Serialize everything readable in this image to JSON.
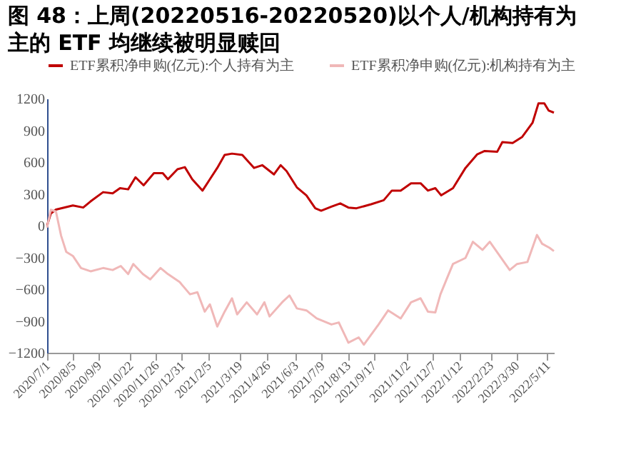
{
  "chart_data": {
    "type": "line",
    "title": "图 48：上周(20220516-20220520)以个人/机构持有为主的 ETF 均继续被明显赎回",
    "xlim": [
      "2020-07-01",
      "2022-05-20"
    ],
    "xticks": [
      {
        "value": "2020-07-01",
        "label": "2020/7/1"
      },
      {
        "value": "2020-08-05",
        "label": "2020/8/5"
      },
      {
        "value": "2020-09-09",
        "label": "2020/9/9"
      },
      {
        "value": "2020-10-22",
        "label": "2020/10/22"
      },
      {
        "value": "2020-11-26",
        "label": "2020/11/26"
      },
      {
        "value": "2020-12-31",
        "label": "2020/12/31"
      },
      {
        "value": "2021-02-05",
        "label": "2021/2/5"
      },
      {
        "value": "2021-03-19",
        "label": "2021/3/19"
      },
      {
        "value": "2021-04-26",
        "label": "2021/4/26"
      },
      {
        "value": "2021-06-03",
        "label": "2021/6/3"
      },
      {
        "value": "2021-07-09",
        "label": "2021/7/9"
      },
      {
        "value": "2021-08-13",
        "label": "2021/8/13"
      },
      {
        "value": "2021-09-17",
        "label": "2021/9/17"
      },
      {
        "value": "2021-11-02",
        "label": "2021/11/2"
      },
      {
        "value": "2021-12-07",
        "label": "2021/12/7"
      },
      {
        "value": "2022-01-12",
        "label": "2022/1/12"
      },
      {
        "value": "2022-02-23",
        "label": "2022/2/23"
      },
      {
        "value": "2022-03-30",
        "label": "2022/3/30"
      },
      {
        "value": "2022-05-11",
        "label": "2022/5/11"
      }
    ],
    "ylim": [
      -1200,
      1200
    ],
    "yticks": [
      -1200,
      -900,
      -600,
      -300,
      0,
      300,
      600,
      900,
      1200
    ],
    "grid": false,
    "legend": "top",
    "line_style": "solid",
    "marker": "none",
    "series": [
      {
        "name": "ETF累积净申购(亿元):个人持有为主",
        "color": "#c00000",
        "x": [
          "2020-07-01",
          "2020-07-06",
          "2020-07-13",
          "2020-08-05",
          "2020-08-19",
          "2020-08-29",
          "2020-09-15",
          "2020-09-28",
          "2020-10-08",
          "2020-10-19",
          "2020-10-29",
          "2020-11-09",
          "2020-11-23",
          "2020-12-05",
          "2020-12-12",
          "2020-12-25",
          "2021-01-04",
          "2021-01-14",
          "2021-01-28",
          "2021-02-07",
          "2021-02-17",
          "2021-02-27",
          "2021-03-09",
          "2021-03-23",
          "2021-04-08",
          "2021-04-19",
          "2021-05-05",
          "2021-05-14",
          "2021-05-22",
          "2021-06-05",
          "2021-06-18",
          "2021-06-30",
          "2021-07-08",
          "2021-07-22",
          "2021-08-03",
          "2021-08-14",
          "2021-08-25",
          "2021-09-14",
          "2021-10-01",
          "2021-10-12",
          "2021-10-24",
          "2021-11-07",
          "2021-11-20",
          "2021-11-30",
          "2021-12-10",
          "2021-12-18",
          "2022-01-03",
          "2022-01-20",
          "2022-02-05",
          "2022-02-15",
          "2022-03-04",
          "2022-03-11",
          "2022-03-25",
          "2022-04-07",
          "2022-04-21",
          "2022-04-29",
          "2022-05-07",
          "2022-05-13",
          "2022-05-20"
        ],
        "values": [
          0,
          114,
          152,
          190,
          171,
          229,
          316,
          305,
          354,
          343,
          457,
          381,
          495,
          495,
          438,
          533,
          552,
          438,
          331,
          438,
          545,
          667,
          680,
          667,
          545,
          571,
          484,
          571,
          516,
          362,
          286,
          164,
          141,
          179,
          210,
          171,
          164,
          202,
          240,
          331,
          331,
          400,
          400,
          331,
          354,
          286,
          354,
          545,
          674,
          705,
          697,
          789,
          781,
          838,
          971,
          1154,
          1154,
          1086,
          1067
        ]
      },
      {
        "name": "ETF累积净申购(亿元):机构持有为主",
        "color": "#f0b8b8",
        "x": [
          "2020-07-01",
          "2020-07-06",
          "2020-07-13",
          "2020-07-20",
          "2020-07-27",
          "2020-08-05",
          "2020-08-16",
          "2020-08-29",
          "2020-09-15",
          "2020-09-28",
          "2020-10-09",
          "2020-10-19",
          "2020-10-26",
          "2020-11-08",
          "2020-11-18",
          "2020-12-02",
          "2020-12-12",
          "2020-12-28",
          "2021-01-11",
          "2021-01-21",
          "2021-01-31",
          "2021-02-07",
          "2021-02-17",
          "2021-02-27",
          "2021-03-09",
          "2021-03-16",
          "2021-03-29",
          "2021-04-12",
          "2021-04-22",
          "2021-04-29",
          "2021-05-16",
          "2021-05-26",
          "2021-06-05",
          "2021-06-18",
          "2021-07-02",
          "2021-07-22",
          "2021-08-01",
          "2021-08-14",
          "2021-08-28",
          "2021-09-04",
          "2021-09-24",
          "2021-10-07",
          "2021-10-24",
          "2021-11-07",
          "2021-11-20",
          "2021-11-30",
          "2021-12-10",
          "2021-12-17",
          "2021-12-26",
          "2022-01-03",
          "2022-01-20",
          "2022-01-30",
          "2022-02-12",
          "2022-02-22",
          "2022-03-21",
          "2022-03-31",
          "2022-04-14",
          "2022-04-27",
          "2022-05-04",
          "2022-05-14",
          "2022-05-20"
        ],
        "values": [
          -19,
          150,
          133,
          -95,
          -248,
          -286,
          -400,
          -431,
          -400,
          -419,
          -381,
          -457,
          -362,
          -457,
          -507,
          -400,
          -457,
          -533,
          -648,
          -629,
          -812,
          -743,
          -952,
          -812,
          -686,
          -838,
          -724,
          -838,
          -724,
          -857,
          -724,
          -659,
          -781,
          -800,
          -876,
          -933,
          -914,
          -1105,
          -1055,
          -1124,
          -933,
          -800,
          -876,
          -724,
          -686,
          -812,
          -819,
          -648,
          -495,
          -362,
          -305,
          -152,
          -229,
          -152,
          -419,
          -362,
          -343,
          -88,
          -171,
          -209,
          -240
        ]
      }
    ]
  }
}
